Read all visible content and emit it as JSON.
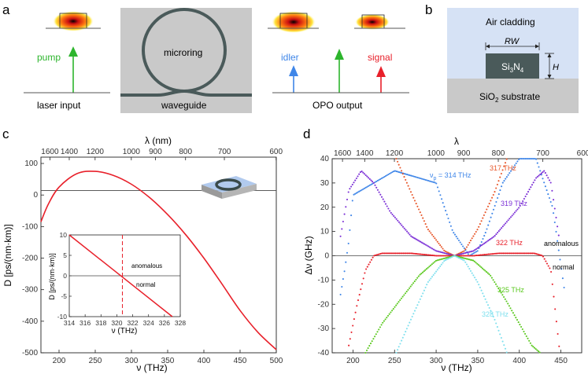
{
  "panel_a": {
    "letter": "a",
    "pump_label": "pump",
    "laser_input_label": "laser input",
    "microring_label": "microring",
    "waveguide_label": "waveguide",
    "idler_label": "idler",
    "signal_label": "signal",
    "opo_output_label": "OPO output"
  },
  "panel_b": {
    "letter": "b",
    "air_cladding_label": "Air cladding",
    "rw_label": "RW",
    "h_label": "H",
    "core_label": "Si3N4",
    "substrate_label": "SiO2 substrate"
  },
  "colors": {
    "pump": "#2db52d",
    "idler": "#3f86e8",
    "signal": "#e8202a",
    "red_curve": "#e8202a",
    "ring_gray": "#4a5a5a",
    "panel_gray": "#c9c9c9",
    "air": "#d6e2f5",
    "core": "#4a5a5a",
    "substrate": "#c9c9c9"
  },
  "chart_data": [
    {
      "panel": "c",
      "type": "line",
      "title": "",
      "xlabel": "ν (THz)",
      "ylabel": "D [ps/(nm·km)]",
      "top_xlabel": "λ (nm)",
      "xlim": [
        175,
        500
      ],
      "ylim": [
        -500,
        120
      ],
      "xticks": [
        200,
        250,
        300,
        350,
        400,
        450,
        500
      ],
      "yticks": [
        100,
        0,
        -100,
        -200,
        -300,
        -400,
        -500
      ],
      "top_ticks": [
        {
          "label": "1600",
          "nu": 187.4
        },
        {
          "label": "1400",
          "nu": 214.1
        },
        {
          "label": "1200",
          "nu": 249.8
        },
        {
          "label": "1000",
          "nu": 299.8
        },
        {
          "label": "900",
          "nu": 333.1
        },
        {
          "label": "800",
          "nu": 374.7
        },
        {
          "label": "700",
          "nu": 428.3
        },
        {
          "label": "600",
          "nu": 499.7
        }
      ],
      "hline": 14,
      "series": [
        {
          "name": "D",
          "color": "#e8202a",
          "x": [
            175,
            185,
            200,
            225,
            250,
            275,
            300,
            325,
            350,
            375,
            400,
            425,
            450,
            475,
            500
          ],
          "y": [
            -85,
            -30,
            25,
            68,
            75,
            62,
            34,
            -8,
            -62,
            -126,
            -200,
            -282,
            -366,
            -436,
            -490
          ]
        }
      ],
      "inset": {
        "xlabel": "ν (THz)",
        "ylabel": "D [ps/(nm·km)]",
        "xlim": [
          314,
          328
        ],
        "ylim": [
          -10,
          10
        ],
        "xticks": [
          314,
          316,
          318,
          320,
          322,
          324,
          326,
          328
        ],
        "yticks": [
          10,
          5,
          0,
          -5,
          -10
        ],
        "vline": 320.7,
        "series": [
          {
            "name": "D",
            "color": "#e8202a",
            "x": [
              314,
              327
            ],
            "y": [
              10,
              -10
            ]
          }
        ],
        "region_labels": [
          "anomalous",
          "normal"
        ]
      }
    },
    {
      "panel": "d",
      "type": "scatter",
      "title": "",
      "xlabel": "ν (THz)",
      "ylabel": "Δν (GHz)",
      "top_xlabel": "λ",
      "xlim": [
        175,
        475
      ],
      "ylim": [
        -40,
        40
      ],
      "xticks": [
        200,
        250,
        300,
        350,
        400,
        450
      ],
      "yticks": [
        40,
        30,
        20,
        10,
        0,
        -10,
        -20,
        -30,
        -40
      ],
      "top_ticks": [
        {
          "label": "1600",
          "nu": 187.4
        },
        {
          "label": "1400",
          "nu": 214.1
        },
        {
          "label": "1200",
          "nu": 249.8
        },
        {
          "label": "1000",
          "nu": 299.8
        },
        {
          "label": "900",
          "nu": 333.1
        },
        {
          "label": "800",
          "nu": 374.7
        },
        {
          "label": "700",
          "nu": 428.3
        },
        {
          "label": "600",
          "nu": 499.7
        }
      ],
      "hline": 0,
      "region_labels": [
        "anomalous",
        "normal"
      ],
      "series": [
        {
          "name": "νp = 314 THz",
          "color": "#3f86e8",
          "x": [
            185,
            190,
            195,
            200,
            250,
            300,
            320,
            340,
            350,
            360,
            380,
            400,
            420,
            440,
            455
          ],
          "y": [
            -16,
            -6,
            6,
            25,
            35,
            30,
            10,
            0,
            2,
            10,
            30,
            40,
            40,
            20,
            -16
          ]
        },
        {
          "name": "317 THz",
          "color": "#e8572a",
          "x": [
            252,
            270,
            290,
            310,
            322,
            334,
            350,
            370,
            385
          ],
          "y": [
            40,
            26,
            11,
            2,
            0,
            2,
            11,
            26,
            40
          ]
        },
        {
          "name": "319 THz",
          "color": "#7b2fd6",
          "x": [
            185,
            195,
            210,
            225,
            245,
            270,
            300,
            322,
            345,
            370,
            400,
            420,
            430,
            438,
            448
          ],
          "y": [
            8,
            27,
            35,
            30,
            18,
            8,
            2,
            0,
            2,
            8,
            20,
            32,
            35,
            30,
            7
          ]
        },
        {
          "name": "322 THz",
          "color": "#e8202a",
          "x": [
            195,
            205,
            215,
            225,
            235,
            250,
            270,
            300,
            322,
            345,
            375,
            400,
            418,
            428,
            438,
            448
          ],
          "y": [
            -37,
            -20,
            -6,
            0,
            1,
            1,
            1,
            0,
            0,
            0,
            1,
            1,
            1,
            0,
            -6,
            -38
          ]
        },
        {
          "name": "325 THz",
          "color": "#5ac81e",
          "x": [
            215,
            235,
            255,
            280,
            300,
            322,
            345,
            365,
            385,
            400,
            415,
            425
          ],
          "y": [
            -40,
            -28,
            -19,
            -8,
            -2,
            0,
            -2,
            -8,
            -19,
            -28,
            -37,
            -40
          ]
        },
        {
          "name": "328 THz",
          "color": "#7fe0ee",
          "x": [
            252,
            270,
            290,
            310,
            322,
            334,
            350,
            370,
            385
          ],
          "y": [
            -40,
            -26,
            -11,
            -2,
            0,
            -2,
            -11,
            -26,
            -40
          ]
        }
      ]
    }
  ],
  "panel_c_letter": "c",
  "panel_d_letter": "d"
}
